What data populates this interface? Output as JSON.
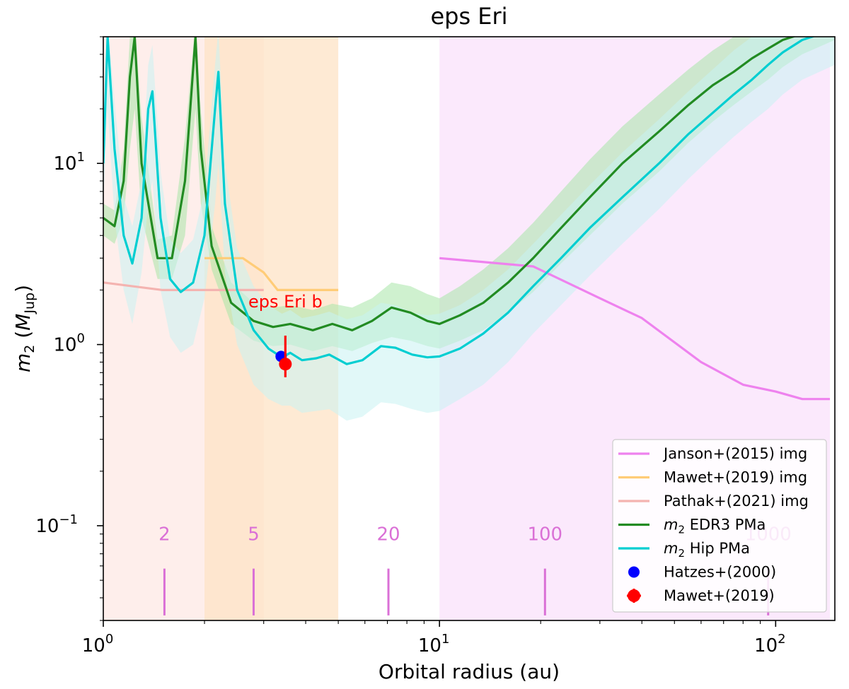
{
  "chart_data": {
    "type": "line",
    "title": "eps Eri",
    "xlabel": "Orbital radius (au)",
    "ylabel": "m₂ (M_Jup)",
    "ylabel_main": "m",
    "ylabel_sub": "2",
    "ylabel_unit_main": "M",
    "ylabel_unit_sub": "Jup",
    "xscale": "log",
    "yscale": "log",
    "xlim": [
      1.0,
      150
    ],
    "ylim": [
      0.03,
      50
    ],
    "x_ticks": [
      {
        "value": 1,
        "base": "10",
        "exp": "0"
      },
      {
        "value": 10,
        "base": "10",
        "exp": "1"
      },
      {
        "value": 100,
        "base": "10",
        "exp": "2"
      }
    ],
    "y_ticks": [
      {
        "value": 0.1,
        "base": "10",
        "exp": "−1"
      },
      {
        "value": 1,
        "base": "10",
        "exp": "0"
      },
      {
        "value": 10,
        "base": "10",
        "exp": "1"
      }
    ],
    "grid": false,
    "legend_position": "lower-right",
    "colors": {
      "janson": "#ee82ee",
      "mawet_img": "#ffcc77",
      "pathak": "#f4b3b0",
      "edr3": "#228b22",
      "hip": "#00ced1",
      "hatzes": "#0000ff",
      "mawet_point": "#ff0000",
      "period": "#da70d6"
    },
    "shaded_regions": [
      {
        "name": "pathak-region",
        "x": [
          1.0,
          3.0
        ],
        "color": "#fde8e4"
      },
      {
        "name": "mawet-region",
        "x": [
          2.0,
          5.0
        ],
        "color": "#fde3c6"
      },
      {
        "name": "janson-region",
        "x": [
          10,
          145
        ],
        "color": "#f9e2fb"
      }
    ],
    "series": [
      {
        "name": "Janson+(2015) img",
        "kind": "line",
        "color": "#ee82ee",
        "x": [
          10,
          19,
          30,
          40,
          60,
          80,
          100,
          120,
          145
        ],
        "y": [
          3.0,
          2.7,
          1.8,
          1.4,
          0.8,
          0.6,
          0.55,
          0.5,
          0.5
        ]
      },
      {
        "name": "Mawet+(2019) img",
        "kind": "line",
        "color": "#ffcc77",
        "x": [
          2.0,
          2.6,
          3.0,
          3.3,
          5.0
        ],
        "y": [
          3.0,
          3.0,
          2.5,
          2.0,
          2.0
        ]
      },
      {
        "name": "Pathak+(2021) img",
        "kind": "line",
        "color": "#f4b3b0",
        "x": [
          1.0,
          1.5,
          3.0
        ],
        "y": [
          2.2,
          2.0,
          2.0
        ]
      },
      {
        "name": "EDR3 PMa",
        "label_prefix": "m",
        "label_sub": "2",
        "label_rest": " EDR3 PMa",
        "kind": "line",
        "color": "#228b22",
        "band_color": "#a8e6a8",
        "x": [
          1.0,
          1.08,
          1.15,
          1.2,
          1.24,
          1.3,
          1.45,
          1.6,
          1.75,
          1.88,
          1.95,
          2.1,
          2.4,
          2.8,
          3.2,
          3.6,
          4.2,
          4.8,
          5.5,
          6.3,
          7.2,
          8.2,
          9.2,
          10.0,
          11.5,
          13.5,
          16,
          19,
          23,
          28,
          35,
          45,
          55,
          65,
          75,
          85,
          95,
          105,
          120,
          150
        ],
        "y": [
          5.0,
          4.5,
          8.0,
          30,
          50,
          10,
          3.0,
          3.0,
          8.0,
          50,
          12,
          3.5,
          1.7,
          1.35,
          1.25,
          1.3,
          1.2,
          1.3,
          1.2,
          1.35,
          1.6,
          1.5,
          1.35,
          1.3,
          1.45,
          1.7,
          2.2,
          3.0,
          4.4,
          6.5,
          10.0,
          15.0,
          21,
          27,
          32,
          38,
          43,
          48,
          52,
          55
        ],
        "band_lower": [
          4.0,
          3.6,
          5.0,
          12,
          20,
          5.0,
          2.3,
          2.3,
          4.0,
          20,
          6.0,
          2.6,
          1.3,
          1.05,
          0.98,
          1.0,
          0.92,
          0.98,
          0.92,
          1.02,
          1.1,
          1.05,
          0.98,
          0.95,
          1.05,
          1.2,
          1.5,
          1.95,
          2.8,
          4.0,
          6.0,
          9.0,
          13,
          17,
          21,
          25,
          29,
          34,
          40,
          48
        ],
        "band_upper": [
          6.0,
          5.5,
          12,
          50,
          60,
          18,
          3.8,
          4.0,
          14,
          60,
          20,
          4.5,
          2.2,
          1.7,
          1.6,
          1.65,
          1.55,
          1.68,
          1.6,
          1.8,
          2.2,
          2.1,
          1.9,
          1.8,
          2.1,
          2.6,
          3.4,
          4.7,
          7.0,
          10.5,
          16,
          24,
          33,
          42,
          50,
          55,
          58,
          60,
          60,
          60
        ]
      },
      {
        "name": "Hip PMa",
        "label_prefix": "m",
        "label_sub": "2",
        "label_rest": " Hip PMa",
        "kind": "line",
        "color": "#00ced1",
        "band_color": "#c8f3f3",
        "x": [
          1.0,
          1.03,
          1.08,
          1.15,
          1.22,
          1.3,
          1.36,
          1.4,
          1.48,
          1.58,
          1.7,
          1.85,
          2.0,
          2.15,
          2.2,
          2.3,
          2.5,
          2.8,
          3.1,
          3.4,
          3.6,
          3.9,
          4.3,
          4.7,
          5.3,
          5.9,
          6.7,
          7.4,
          8.3,
          9.2,
          10.0,
          11.5,
          13.5,
          16,
          19,
          23,
          28,
          35,
          45,
          55,
          65,
          75,
          85,
          95,
          105,
          120,
          150
        ],
        "y": [
          10,
          50,
          12,
          4.0,
          2.8,
          5.0,
          20,
          25,
          5.0,
          2.3,
          1.95,
          2.2,
          4.0,
          20,
          32,
          6.0,
          2.0,
          1.2,
          0.95,
          0.85,
          0.9,
          0.82,
          0.84,
          0.88,
          0.78,
          0.82,
          0.98,
          0.96,
          0.88,
          0.85,
          0.86,
          0.95,
          1.15,
          1.5,
          2.1,
          3.0,
          4.4,
          6.5,
          10.0,
          14.5,
          19,
          24,
          29,
          35,
          41,
          48,
          55
        ],
        "band_lower": [
          6.0,
          20,
          5.0,
          2.0,
          1.3,
          2.5,
          6.0,
          8.0,
          2.0,
          1.1,
          0.9,
          1.0,
          1.8,
          6.0,
          10,
          2.5,
          1.0,
          0.6,
          0.5,
          0.46,
          0.46,
          0.42,
          0.43,
          0.44,
          0.38,
          0.4,
          0.48,
          0.47,
          0.44,
          0.42,
          0.43,
          0.5,
          0.6,
          0.8,
          1.15,
          1.65,
          2.4,
          3.6,
          5.6,
          8.2,
          11,
          14,
          17,
          20,
          24,
          29,
          35
        ],
        "band_upper": [
          16,
          60,
          22,
          6.5,
          4.5,
          8.0,
          35,
          45,
          9.0,
          3.8,
          3.2,
          3.8,
          7.0,
          35,
          55,
          10,
          3.4,
          2.1,
          1.65,
          1.48,
          1.55,
          1.4,
          1.45,
          1.52,
          1.38,
          1.45,
          1.7,
          1.65,
          1.5,
          1.45,
          1.48,
          1.65,
          2.0,
          2.6,
          3.6,
          5.2,
          7.6,
          11.5,
          17.5,
          25,
          33,
          42,
          50,
          56,
          60,
          60,
          60
        ]
      },
      {
        "name": "Hatzes+(2000)",
        "kind": "point",
        "color": "#0000ff",
        "x": [
          3.38
        ],
        "y": [
          0.86
        ]
      },
      {
        "name": "Mawet+(2019)",
        "kind": "errorpoint",
        "color": "#ff0000",
        "x": [
          3.48
        ],
        "y": [
          0.78
        ],
        "y_err_low": [
          0.66
        ],
        "y_err_high": [
          1.12
        ]
      }
    ],
    "annotations": [
      {
        "text": "eps Eri b",
        "x": 3.48,
        "y": 1.6,
        "color": "#ff0000"
      }
    ],
    "period_markers": {
      "color": "#da70d6",
      "label_y": 0.083,
      "line_y": [
        0.032,
        0.058
      ],
      "items": [
        {
          "label": "2",
          "x": 1.52
        },
        {
          "label": "5",
          "x": 2.8
        },
        {
          "label": "20",
          "x": 7.05
        },
        {
          "label": "100",
          "x": 20.6
        },
        {
          "label": "1000",
          "x": 95
        }
      ]
    }
  }
}
